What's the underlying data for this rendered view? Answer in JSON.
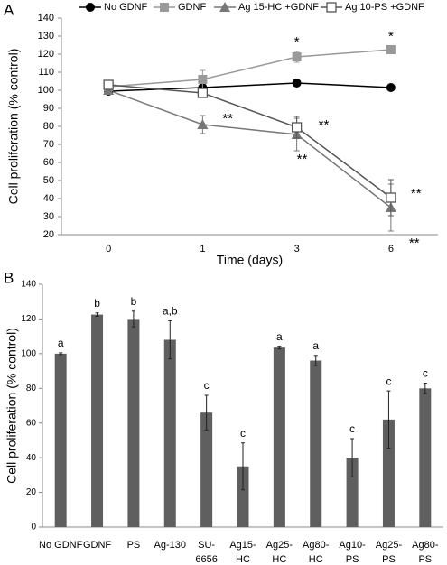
{
  "chart_data": [
    {
      "type": "line",
      "panel_label": "A",
      "x_label": "Time (days)",
      "y_label": "Cell proliferation (% control)",
      "categories": [
        "0",
        "1",
        "3",
        "6"
      ],
      "ylim": [
        20,
        140
      ],
      "yticks": [
        20,
        30,
        40,
        50,
        60,
        70,
        80,
        90,
        100,
        110,
        120,
        130,
        140
      ],
      "legend": "top",
      "series": [
        {
          "name": "No GDNF",
          "color": "#000000",
          "marker": "circle",
          "values": [
            99.5,
            101.5,
            104,
            101.5
          ],
          "errors": [
            0.5,
            1,
            1,
            1
          ]
        },
        {
          "name": "GDNF",
          "color": "#999999",
          "marker": "square",
          "values": [
            102,
            106,
            118.5,
            122.5
          ],
          "errors": [
            1,
            5,
            3,
            1.5
          ]
        },
        {
          "name": "Ag 15-HC +GDNF",
          "color": "#777777",
          "marker": "triangle",
          "values": [
            100,
            81,
            75.5,
            35
          ],
          "errors": [
            1,
            5,
            9,
            13
          ]
        },
        {
          "name": "Ag 10-PS +GDNF",
          "color": "#555555",
          "marker": "open-square",
          "values": [
            103,
            98.5,
            79.5,
            40.5
          ],
          "errors": [
            1,
            2,
            6,
            10
          ]
        }
      ],
      "annotations": [
        "*",
        "*",
        "**",
        "**",
        "**",
        "**",
        "**"
      ]
    },
    {
      "type": "bar",
      "panel_label": "B",
      "y_label": "Cell proliferation (% control)",
      "categories": [
        [
          "No GDNF"
        ],
        [
          "GDNF"
        ],
        [
          "PS"
        ],
        [
          "Ag-130"
        ],
        [
          "SU-",
          "6656"
        ],
        [
          "Ag15-",
          "HC"
        ],
        [
          "Ag25-",
          "HC"
        ],
        [
          "Ag80-",
          "HC"
        ],
        [
          "Ag10-",
          "PS"
        ],
        [
          "Ag25-",
          "PS"
        ],
        [
          "Ag80-",
          "PS"
        ]
      ],
      "values": [
        100,
        122.5,
        120,
        108,
        66,
        35,
        103.5,
        96,
        40,
        62,
        80
      ],
      "errors": [
        0.5,
        1,
        4.5,
        11,
        10,
        13.5,
        0.8,
        3,
        11,
        16.5,
        3
      ],
      "letters": [
        "a",
        "b",
        "b",
        "a,b",
        "c",
        "c",
        "a",
        "a",
        "c",
        "c",
        "c"
      ],
      "color": "#5f5f5f",
      "ylim": [
        0,
        140
      ],
      "yticks": [
        0,
        20,
        40,
        60,
        80,
        100,
        120,
        140
      ]
    }
  ]
}
